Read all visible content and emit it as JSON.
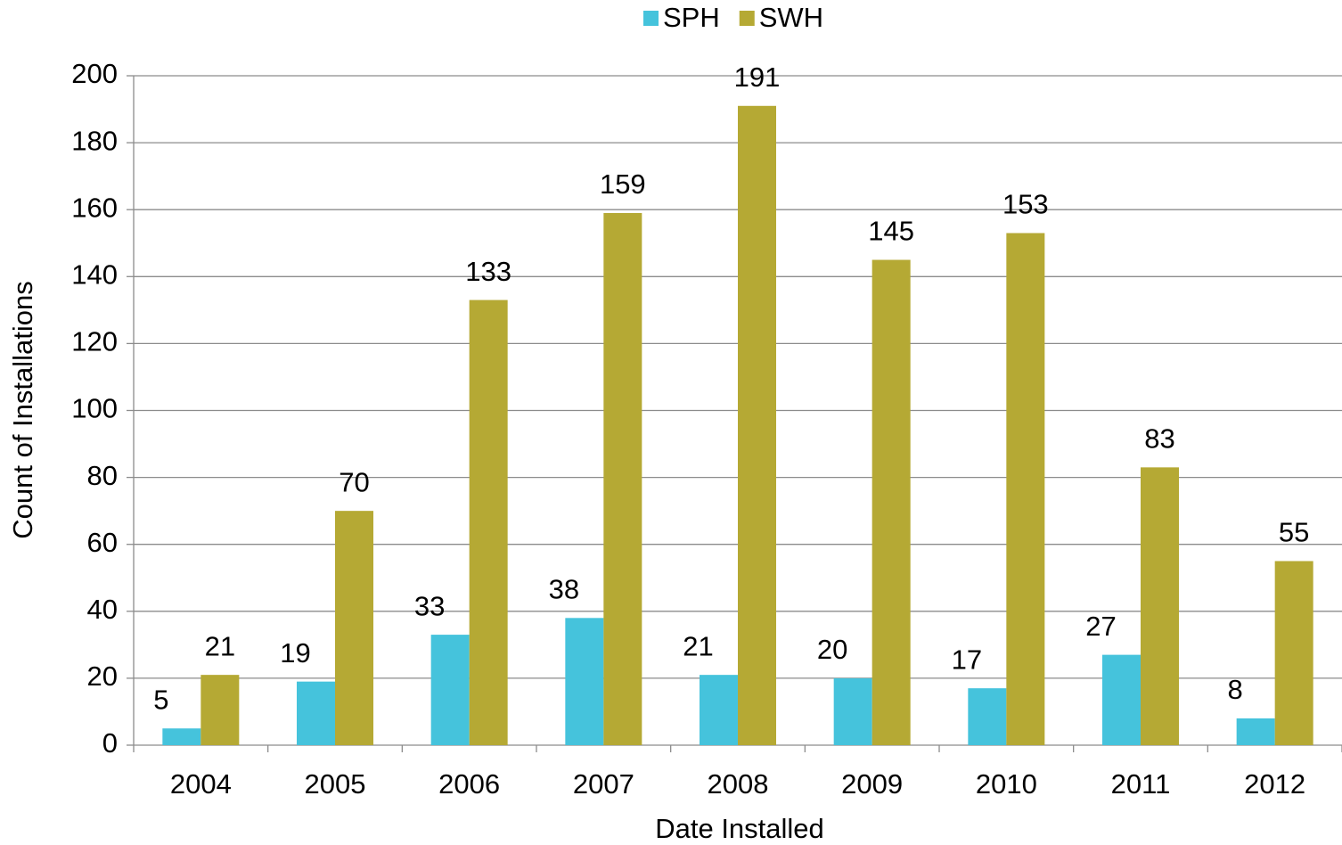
{
  "chart_data": {
    "type": "bar",
    "x_label": "Date Installed",
    "y_label": "Count of Installations",
    "categories": [
      "2004",
      "2005",
      "2006",
      "2007",
      "2008",
      "2009",
      "2010",
      "2011",
      "2012"
    ],
    "series": [
      {
        "name": "SPH",
        "color": "#45c3dc",
        "values": [
          5,
          19,
          33,
          38,
          21,
          20,
          17,
          27,
          8
        ]
      },
      {
        "name": "SWH",
        "color": "#b5a934",
        "values": [
          21,
          70,
          133,
          159,
          191,
          145,
          153,
          83,
          55
        ]
      }
    ],
    "ylim": [
      0,
      200
    ],
    "yticks": [
      0,
      20,
      40,
      60,
      80,
      100,
      120,
      140,
      160,
      180,
      200
    ],
    "grid": true,
    "legend": "top",
    "data_labels": true
  }
}
